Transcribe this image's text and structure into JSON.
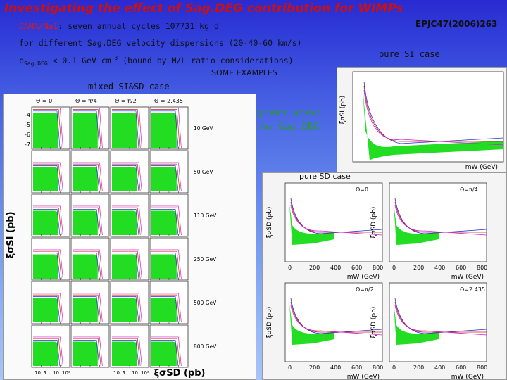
{
  "slide": {
    "title": "Investigating the effect of Sag.DEG contribution for WIMPs",
    "reference": "EPJC47(2006)263",
    "line1_prefix": "DAMA/NaI",
    "line1_rest": ": seven annual cycles 107731 kg d",
    "line2": "for different Sag.DEG velocity dispersions (20-40-60 km/s)",
    "line3_rho": "ρ",
    "line3_sub": "Sag.DEG",
    "line3_rest": " < 0.1 GeV cm",
    "line3_exp": "-3",
    "line3_tail": " (bound by M/L ratio considerations)",
    "some_examples": "SOME EXAMPLES",
    "mixed_label": "mixed SI&SD case",
    "green_area_line1": "green area:",
    "green_area_line2": "no Sag.DEG",
    "pure_si_label": "pure SI case",
    "pure_sd_label": "pure SD case"
  },
  "mixed_grid": {
    "y_axis_label": "ξσSI (pb)",
    "x_axis_label": "ξσSD (pb)",
    "theta_headers": [
      "Θ = 0",
      "Θ = π/4",
      "Θ = π/2",
      "Θ = 2.435"
    ],
    "mass_labels": [
      "10 GeV",
      "50 GeV",
      "110 GeV",
      "250 GeV",
      "500 GeV",
      "800 GeV"
    ],
    "x_tick_labels": [
      "10⁻¹",
      "1",
      "10",
      "10²",
      "10⁻¹",
      "1",
      "10",
      "10²"
    ],
    "y_tick_labels": [
      "-4",
      "-5",
      "-6",
      "-7"
    ]
  },
  "si_plot": {
    "y_axis_label": "ξσSI (pb)",
    "x_axis_label": "mW (GeV)"
  },
  "sd_plots": {
    "y_axis_label": "ξσSD (pb)",
    "x_axis_label": "mW (GeV)",
    "x_tick_labels": [
      "0",
      "200",
      "400",
      "600",
      "800"
    ],
    "panels": [
      {
        "theta": "Θ=0"
      },
      {
        "theta": "Θ=π/4"
      },
      {
        "theta": "Θ=π/2"
      },
      {
        "theta": "Θ=2.435"
      }
    ]
  },
  "colors": {
    "title": "#cc1010",
    "green_fill": "#22dd22",
    "curve_blue": "#2233cc",
    "curve_red": "#cc2222",
    "curve_magenta": "#cc22cc"
  }
}
